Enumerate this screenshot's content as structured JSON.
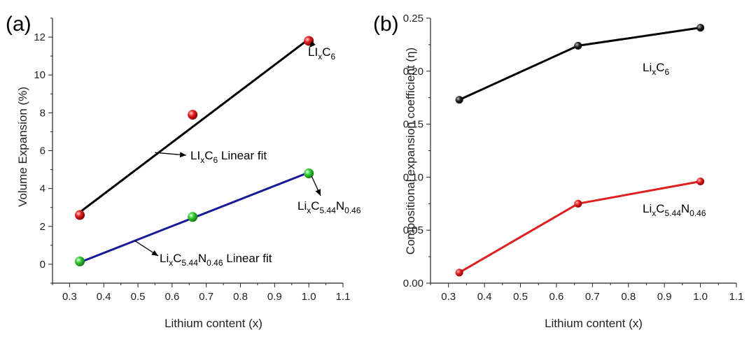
{
  "chart_data": [
    {
      "type": "scatter",
      "panel_label": "(a)",
      "xlabel": "Lithium content (x)",
      "ylabel": "Volume Expansion (%)",
      "xlim": [
        0.25,
        1.1
      ],
      "ylim": [
        -1,
        13
      ],
      "xticks": [
        "0.3",
        "0.4",
        "0.5",
        "0.6",
        "0.7",
        "0.8",
        "0.9",
        "1.0",
        "1.1"
      ],
      "yticks": [
        "0",
        "2",
        "4",
        "6",
        "8",
        "10",
        "12"
      ],
      "grid": false,
      "series": [
        {
          "kind": "points",
          "color": "#e02020",
          "x": [
            0.33,
            0.66,
            1.0
          ],
          "y": [
            2.6,
            7.9,
            11.8
          ]
        },
        {
          "kind": "points",
          "color": "#33cc33",
          "x": [
            0.33,
            0.66,
            1.0
          ],
          "y": [
            0.15,
            2.5,
            4.8
          ]
        },
        {
          "kind": "fit",
          "color": "#000000",
          "x": [
            0.33,
            1.0
          ],
          "y": [
            2.75,
            11.9
          ]
        },
        {
          "kind": "fit",
          "color": "#1a1a99",
          "x": [
            0.33,
            1.0
          ],
          "y": [
            0.1,
            4.85
          ]
        }
      ],
      "annotations": [
        {
          "main": "LI",
          "sub": "x",
          "main2": "C",
          "sub2": "6",
          "tail": "",
          "pointer": [
            1.0,
            11.8
          ]
        },
        {
          "main": "LI",
          "sub": "x",
          "main2": "C",
          "sub2": "6",
          "tail": " Linear fit",
          "pointer": [
            0.55,
            5.9
          ]
        },
        {
          "main": "Li",
          "sub": "x",
          "main2": "C",
          "sub2": "5.44",
          "main3": "N",
          "sub3": "0.46",
          "tail": "",
          "pointer": [
            1.0,
            4.8
          ]
        },
        {
          "main": "Li",
          "sub": "x",
          "main2": "C",
          "sub2": "5.44",
          "main3": "N",
          "sub3": "0.46",
          "tail": " Linear fit",
          "pointer": [
            0.49,
            1.25
          ]
        }
      ]
    },
    {
      "type": "line",
      "panel_label": "(b)",
      "xlabel": "Lithium content (x)",
      "ylabel": "Compositional expansion coefficient (η)",
      "xlim": [
        0.25,
        1.1
      ],
      "ylim": [
        0.0,
        0.25
      ],
      "xticks": [
        "0.3",
        "0.4",
        "0.5",
        "0.6",
        "0.7",
        "0.8",
        "0.9",
        "1.0",
        "1.1"
      ],
      "yticks": [
        "0.00",
        "0.05",
        "0.10",
        "0.15",
        "0.20",
        "0.25"
      ],
      "grid": false,
      "series": [
        {
          "kind": "line",
          "color": "#000000",
          "x": [
            0.33,
            0.66,
            1.0
          ],
          "y": [
            0.173,
            0.224,
            0.241
          ]
        },
        {
          "kind": "line",
          "color": "#e02020",
          "x": [
            0.33,
            0.66,
            1.0
          ],
          "y": [
            0.01,
            0.075,
            0.096
          ]
        }
      ],
      "annotations": [
        {
          "main": "Li",
          "sub": "x",
          "main2": "C",
          "sub2": "6",
          "tail": ""
        },
        {
          "main": "Li",
          "sub": "x",
          "main2": "C",
          "sub2": "5.44",
          "main3": "N",
          "sub3": "0.46",
          "tail": ""
        }
      ]
    }
  ]
}
